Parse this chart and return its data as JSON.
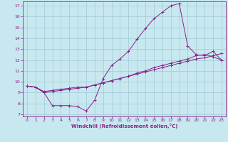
{
  "xlabel": "Windchill (Refroidissement éolien,°C)",
  "background_color": "#c8e8f0",
  "grid_color": "#a0c8d8",
  "line_color": "#882288",
  "xlim": [
    -0.5,
    23.5
  ],
  "ylim": [
    6.8,
    17.4
  ],
  "xticks": [
    0,
    1,
    2,
    3,
    4,
    5,
    6,
    7,
    8,
    9,
    10,
    11,
    12,
    13,
    14,
    15,
    16,
    17,
    18,
    19,
    20,
    21,
    22,
    23
  ],
  "yticks": [
    7,
    8,
    9,
    10,
    11,
    12,
    13,
    14,
    15,
    16,
    17
  ],
  "line1_x": [
    0,
    1,
    2,
    3,
    4,
    5,
    6,
    7,
    8,
    9,
    10,
    11,
    12,
    13,
    14,
    15,
    16,
    17,
    18,
    19,
    20,
    21,
    22,
    23
  ],
  "line1_y": [
    9.6,
    9.5,
    9.0,
    7.8,
    7.8,
    7.8,
    7.7,
    7.3,
    8.3,
    10.3,
    11.5,
    12.1,
    12.8,
    13.9,
    14.9,
    15.8,
    16.4,
    17.0,
    17.2,
    13.3,
    12.5,
    12.4,
    12.8,
    12.0
  ],
  "line2_x": [
    0,
    1,
    2,
    3,
    4,
    5,
    6,
    7,
    8,
    9,
    10,
    11,
    12,
    13,
    14,
    15,
    16,
    17,
    18,
    19,
    20,
    21,
    22,
    23
  ],
  "line2_y": [
    9.6,
    9.5,
    9.1,
    9.2,
    9.3,
    9.4,
    9.5,
    9.5,
    9.7,
    9.9,
    10.1,
    10.3,
    10.5,
    10.8,
    11.0,
    11.3,
    11.5,
    11.7,
    11.9,
    12.1,
    12.4,
    12.5,
    12.3,
    12.0
  ],
  "line3_x": [
    0,
    1,
    2,
    3,
    4,
    5,
    6,
    7,
    8,
    9,
    10,
    11,
    12,
    13,
    14,
    15,
    16,
    17,
    18,
    19,
    20,
    21,
    22,
    23
  ],
  "line3_y": [
    9.6,
    9.5,
    9.0,
    9.1,
    9.2,
    9.3,
    9.4,
    9.5,
    9.7,
    9.9,
    10.1,
    10.3,
    10.5,
    10.7,
    10.9,
    11.1,
    11.3,
    11.5,
    11.7,
    11.9,
    12.1,
    12.2,
    12.4,
    12.6
  ]
}
